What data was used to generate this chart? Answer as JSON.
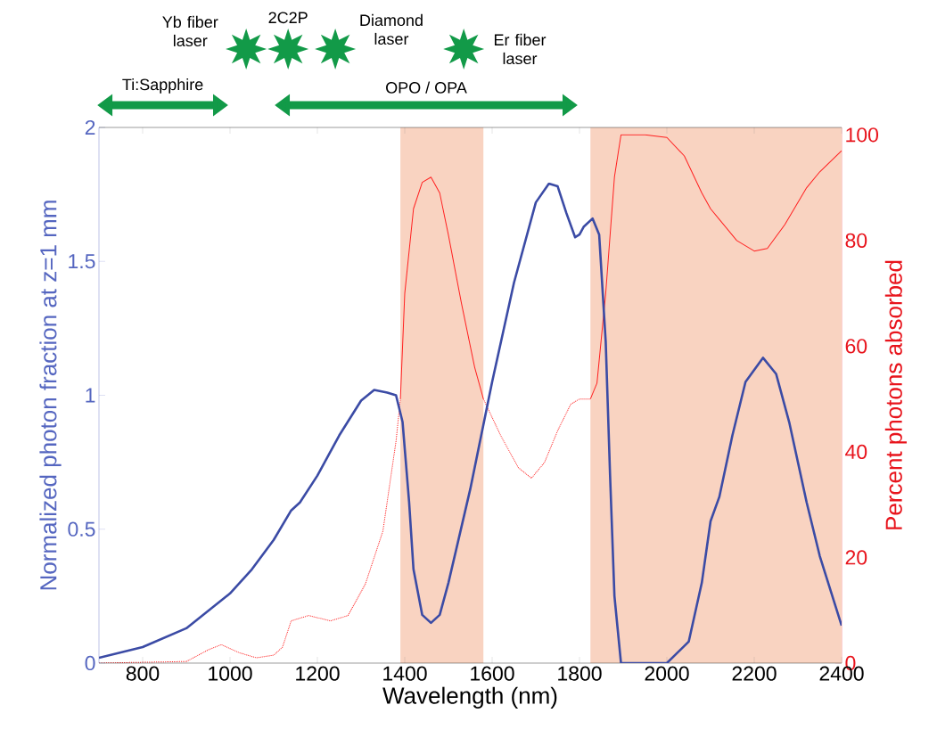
{
  "chart_data": {
    "type": "line",
    "xlabel": "Wavelength (nm)",
    "ylabel": "Normalized photon fraction at z=1 mm",
    "y2label": "Percent photons absorbed",
    "xlim": [
      700,
      2400
    ],
    "xticks": [
      800,
      1000,
      1200,
      1400,
      1600,
      1800,
      2000,
      2200,
      2400
    ],
    "ylim": [
      0,
      2
    ],
    "yticks": [
      0,
      0.5,
      1,
      1.5,
      2
    ],
    "y2lim": [
      0,
      101.4
    ],
    "y2ticks": [
      0,
      20,
      40,
      60,
      80,
      100
    ],
    "series": [
      {
        "color": "#ff2020",
        "axis": "y2",
        "line_style": "dotted",
        "x": [
          700,
          900,
          950,
          980,
          1020,
          1060,
          1100,
          1120,
          1140,
          1180,
          1230,
          1270,
          1310,
          1350,
          1380,
          1390,
          1480,
          1580,
          1620,
          1660,
          1690,
          1720,
          1750,
          1780,
          1800,
          1825
        ],
        "values": [
          0,
          0.3,
          2.5,
          3.5,
          2,
          1,
          1.5,
          3,
          8,
          9,
          8,
          9,
          15,
          25,
          42,
          50,
          null,
          50,
          43,
          37,
          35,
          38,
          44,
          49,
          50,
          50
        ]
      },
      {
        "color": "#ff2020",
        "axis": "y2",
        "line_style": "solid",
        "x": [
          1390,
          1400,
          1420,
          1440,
          1460,
          1480,
          1500,
          1530,
          1560,
          1580,
          1700,
          1825,
          1840,
          1860,
          1880,
          1895,
          1950,
          2000,
          2040,
          2080,
          2100,
          2120,
          2160,
          2200,
          2230,
          2270,
          2320,
          2350,
          2400
        ],
        "values": [
          50,
          70,
          86,
          91,
          92,
          89,
          81,
          68,
          56,
          50,
          null,
          50,
          53,
          70,
          92,
          100,
          100,
          99.5,
          96,
          89,
          86,
          84,
          80,
          78,
          78.5,
          83,
          90,
          93,
          97
        ]
      },
      {
        "color": "#3b4ba5",
        "line_style": "solid",
        "x": [
          700,
          800,
          900,
          1000,
          1050,
          1100,
          1140,
          1160,
          1200,
          1250,
          1300,
          1330,
          1360,
          1380,
          1395,
          1410,
          1420,
          1440,
          1460,
          1480,
          1500,
          1550,
          1600,
          1650,
          1700,
          1730,
          1750,
          1770,
          1790,
          1800,
          1810,
          1830,
          1845,
          1860,
          1870,
          1880,
          1895,
          1950,
          2000,
          2050,
          2080,
          2100,
          2120,
          2150,
          2180,
          2220,
          2250,
          2280,
          2320,
          2350,
          2400
        ],
        "values": [
          0.02,
          0.06,
          0.13,
          0.26,
          0.35,
          0.46,
          0.57,
          0.6,
          0.7,
          0.85,
          0.98,
          1.02,
          1.01,
          1.0,
          0.9,
          0.6,
          0.35,
          0.18,
          0.15,
          0.18,
          0.3,
          0.65,
          1.05,
          1.42,
          1.72,
          1.79,
          1.78,
          1.68,
          1.59,
          1.6,
          1.63,
          1.66,
          1.6,
          1.2,
          0.7,
          0.25,
          0,
          0,
          0,
          0.08,
          0.3,
          0.53,
          0.62,
          0.85,
          1.05,
          1.14,
          1.08,
          0.9,
          0.6,
          0.4,
          0.14
        ]
      }
    ],
    "bands": [
      {
        "axis": "x",
        "from": 1390,
        "to": 1580,
        "color": "#f9d3c1"
      },
      {
        "axis": "x",
        "from": 1825,
        "to": 2400,
        "color": "#f9d3c1"
      }
    ],
    "annotations": [
      "Ti:Sapphire",
      "OPO / OPA",
      "Yb fiber laser",
      "2C2P",
      "Diamond laser",
      "Er fiber laser"
    ]
  }
}
